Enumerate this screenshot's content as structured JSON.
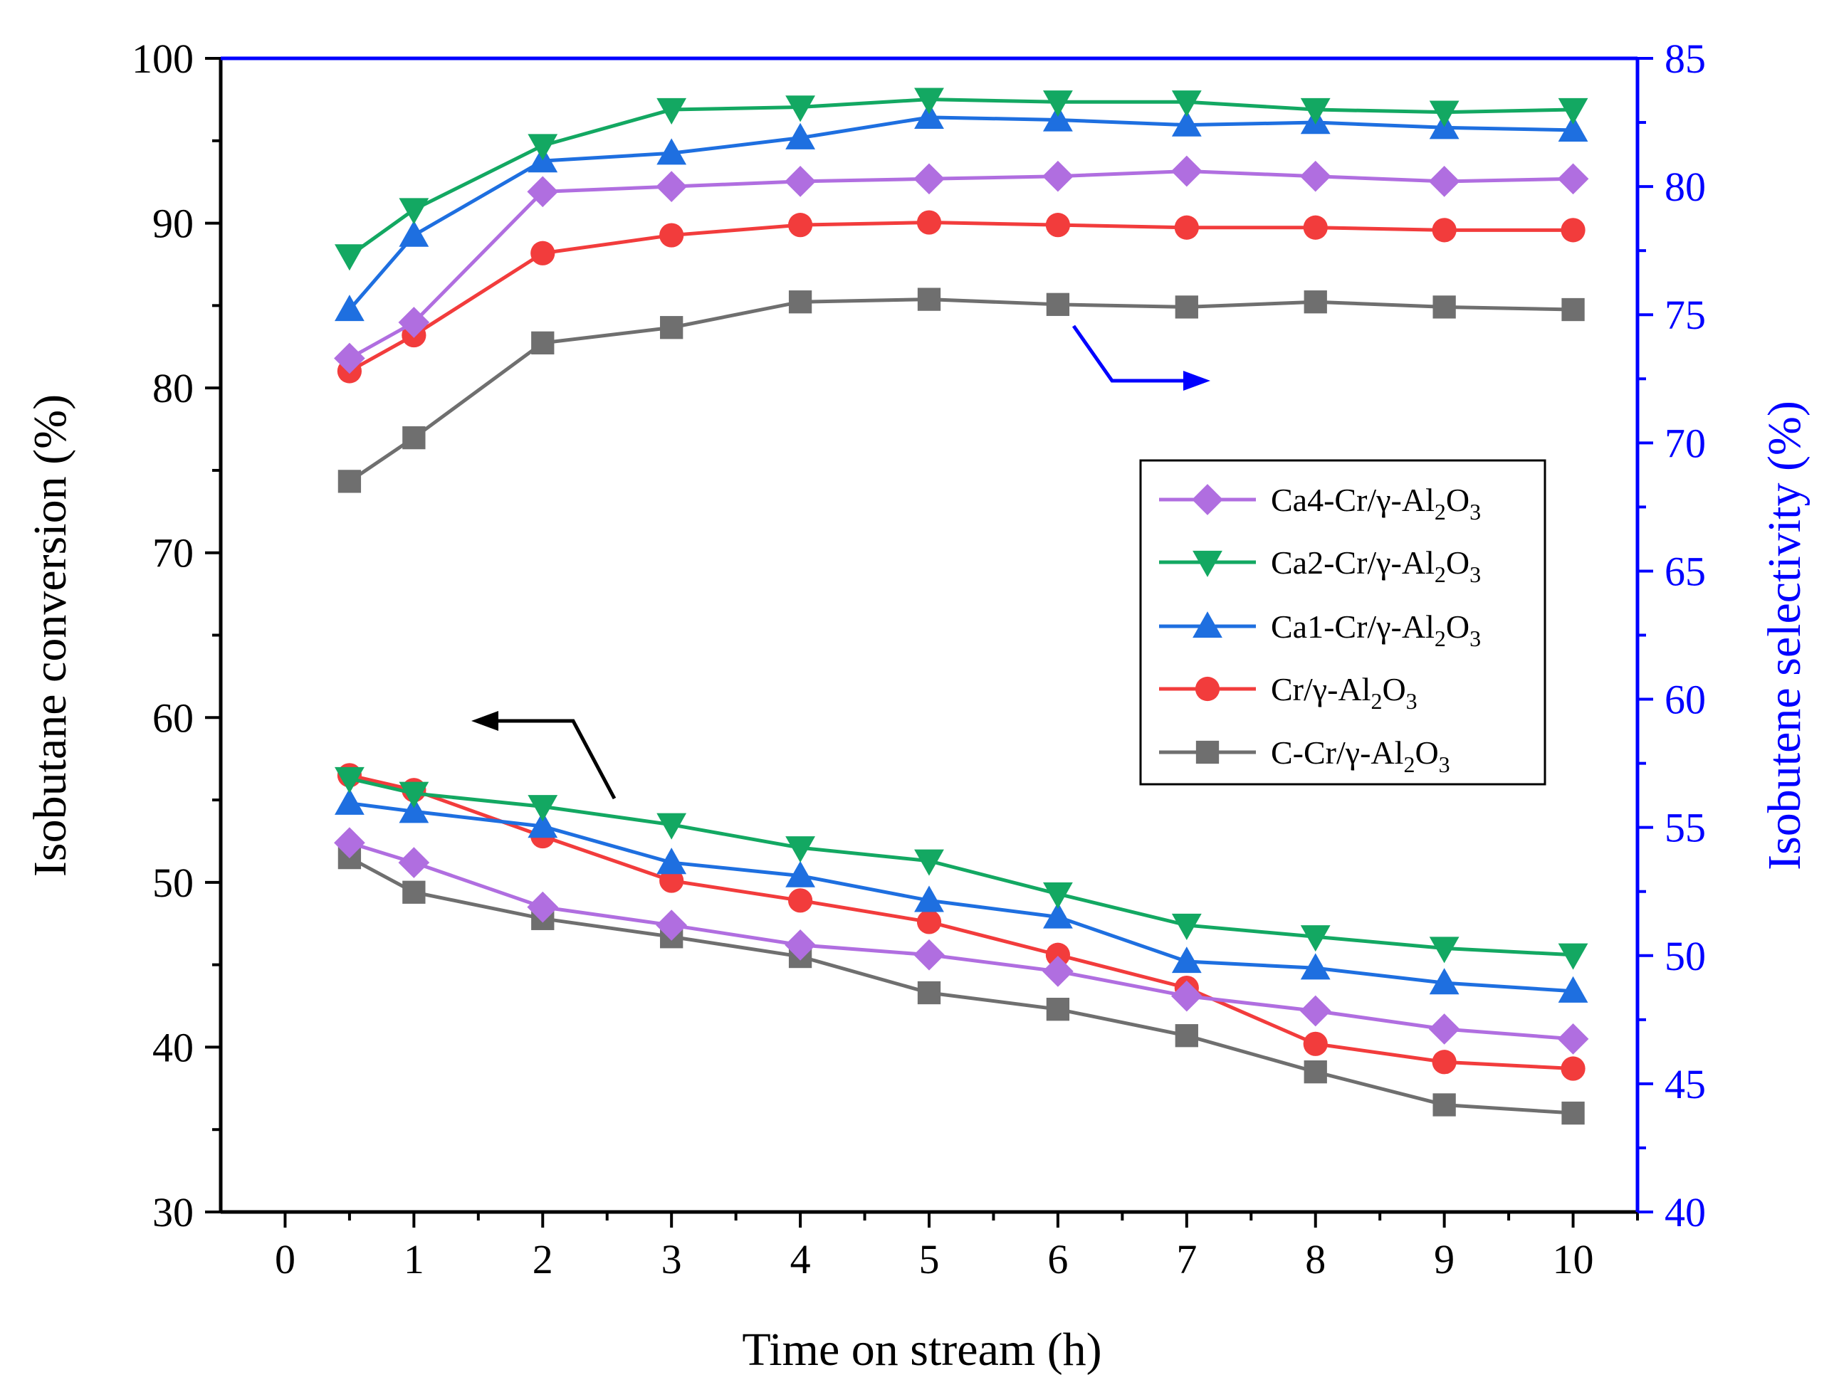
{
  "chart_data": {
    "type": "line",
    "xlabel": "Time on stream (h)",
    "ylabel_left": "Isobutane conversion (%)",
    "ylabel_right": "Isobutene selectivity (%)",
    "xlim": [
      -0.5,
      10.5
    ],
    "x_ticks": [
      "0",
      "1",
      "2",
      "3",
      "4",
      "5",
      "6",
      "7",
      "8",
      "9",
      "10"
    ],
    "ylim_left": [
      30,
      100
    ],
    "y_ticks_left": [
      "30",
      "40",
      "50",
      "60",
      "70",
      "80",
      "90",
      "100"
    ],
    "ylim_right": [
      40,
      85
    ],
    "y_ticks_right": [
      "40",
      "45",
      "50",
      "55",
      "60",
      "65",
      "70",
      "75",
      "80",
      "85"
    ],
    "x": [
      0.5,
      1,
      2,
      3,
      4,
      5,
      6,
      7,
      8,
      9,
      10
    ],
    "series": [
      {
        "name": "Ca4-Cr/γ-Al2O3",
        "label_parts": [
          "Ca4-Cr/γ-Al",
          "2",
          "O",
          "3"
        ],
        "color": "#b06ee0",
        "marker": "diamond",
        "conversion": [
          52.4,
          51.2,
          48.5,
          47.4,
          46.2,
          45.6,
          44.6,
          43.1,
          42.2,
          41.1,
          40.5
        ],
        "selectivity": [
          73.3,
          74.7,
          79.8,
          80.0,
          80.2,
          80.3,
          80.4,
          80.6,
          80.4,
          80.2,
          80.3
        ]
      },
      {
        "name": "Ca2-Cr/γ-Al2O3",
        "label_parts": [
          "Ca2-Cr/γ-Al",
          "2",
          "O",
          "3"
        ],
        "color": "#13a862",
        "marker": "triangle-down",
        "conversion": [
          56.3,
          55.4,
          54.6,
          53.5,
          52.1,
          51.3,
          49.3,
          47.4,
          46.7,
          46.0,
          45.6
        ],
        "selectivity": [
          77.3,
          79.1,
          81.6,
          83.0,
          83.1,
          83.4,
          83.3,
          83.3,
          83.0,
          82.9,
          83.0
        ]
      },
      {
        "name": "Ca1-Cr/γ-Al2O3",
        "label_parts": [
          "Ca1-Cr/γ-Al",
          "2",
          "O",
          "3"
        ],
        "color": "#1e6fe0",
        "marker": "triangle-up",
        "conversion": [
          54.8,
          54.3,
          53.4,
          51.2,
          50.4,
          48.9,
          47.9,
          45.2,
          44.8,
          43.9,
          43.4
        ],
        "selectivity": [
          75.2,
          78.1,
          81.0,
          81.3,
          81.9,
          82.7,
          82.6,
          82.4,
          82.5,
          82.3,
          82.2
        ]
      },
      {
        "name": "Cr/γ-Al2O3",
        "label_parts": [
          "Cr/γ-Al",
          "2",
          "O",
          "3"
        ],
        "color": "#f23c3c",
        "marker": "circle",
        "conversion": [
          56.5,
          55.6,
          52.8,
          50.1,
          48.9,
          47.6,
          45.6,
          43.6,
          40.2,
          39.1,
          38.7
        ],
        "selectivity": [
          72.8,
          74.2,
          77.4,
          78.1,
          78.5,
          78.6,
          78.5,
          78.4,
          78.4,
          78.3,
          78.3
        ]
      },
      {
        "name": "C-Cr/γ-Al2O3",
        "label_parts": [
          "C-Cr/γ-Al",
          "2",
          "O",
          "3"
        ],
        "color": "#6f6f6f",
        "marker": "square",
        "conversion": [
          51.5,
          49.4,
          47.8,
          46.7,
          45.5,
          43.3,
          42.3,
          40.7,
          38.5,
          36.5,
          36.0
        ],
        "selectivity": [
          68.5,
          70.2,
          73.9,
          74.5,
          75.5,
          75.6,
          75.4,
          75.3,
          75.5,
          75.3,
          75.2
        ]
      }
    ],
    "annotations": [
      {
        "text": "arrow pointing left: conversion series use left axis",
        "color": "#000000"
      },
      {
        "text": "arrow pointing right: selectivity series use right axis",
        "color": "#0000ff"
      }
    ],
    "legend_position": "right-middle",
    "grid": false,
    "right_axis_color": "#0000ff"
  }
}
